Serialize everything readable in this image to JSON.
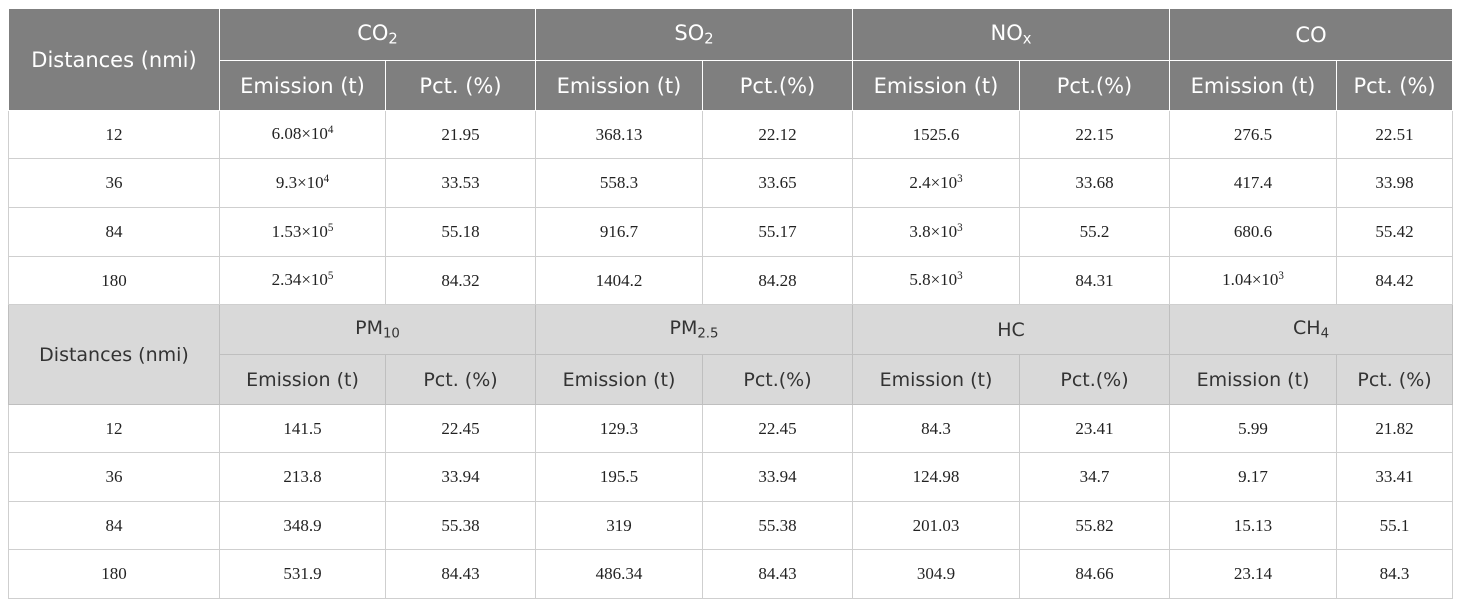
{
  "tables": [
    {
      "row_header": "Distances (nmi)",
      "groups": [
        {
          "name": {
            "base": "CO",
            "sub": "2"
          },
          "columns": [
            "Emission (t)",
            "Pct. (%)"
          ]
        },
        {
          "name": {
            "base": "SO",
            "sub": "2"
          },
          "columns": [
            "Emission (t)",
            "Pct.(%)"
          ]
        },
        {
          "name": {
            "base": "NO",
            "sub": "x"
          },
          "columns": [
            "Emission (t)",
            "Pct.(%)"
          ]
        },
        {
          "name": {
            "base": "CO"
          },
          "columns": [
            "Emission (t)",
            "Pct. (%)"
          ]
        }
      ],
      "rows": [
        [
          "12",
          {
            "base": "6.08×10",
            "sup": "4"
          },
          "21.95",
          "368.13",
          "22.12",
          "1525.6",
          "22.15",
          "276.5",
          "22.51"
        ],
        [
          "36",
          {
            "base": "9.3×10",
            "sup": "4"
          },
          "33.53",
          "558.3",
          "33.65",
          {
            "base": "2.4×10",
            "sup": "3"
          },
          "33.68",
          "417.4",
          "33.98"
        ],
        [
          "84",
          {
            "base": "1.53×10",
            "sup": "5"
          },
          "55.18",
          "916.7",
          "55.17",
          {
            "base": "3.8×10",
            "sup": "3"
          },
          "55.2",
          "680.6",
          "55.42"
        ],
        [
          "180",
          {
            "base": "2.34×10",
            "sup": "5"
          },
          "84.32",
          "1404.2",
          "84.28",
          {
            "base": "5.8×10",
            "sup": "3"
          },
          "84.31",
          {
            "base": "1.04×10",
            "sup": "3"
          },
          "84.42"
        ]
      ]
    },
    {
      "row_header": "Distances (nmi)",
      "groups": [
        {
          "name": {
            "base": "PM",
            "sub": "10"
          },
          "columns": [
            "Emission (t)",
            "Pct. (%)"
          ]
        },
        {
          "name": {
            "base": "PM",
            "sub": "2.5"
          },
          "columns": [
            "Emission (t)",
            "Pct.(%)"
          ]
        },
        {
          "name": {
            "base": "HC"
          },
          "columns": [
            "Emission (t)",
            "Pct.(%)"
          ]
        },
        {
          "name": {
            "base": "CH",
            "sub": "4"
          },
          "columns": [
            "Emission (t)",
            "Pct. (%)"
          ]
        }
      ],
      "rows": [
        [
          "12",
          "141.5",
          "22.45",
          "129.3",
          "22.45",
          "84.3",
          "23.41",
          "5.99",
          "21.82"
        ],
        [
          "36",
          "213.8",
          "33.94",
          "195.5",
          "33.94",
          "124.98",
          "34.7",
          "9.17",
          "33.41"
        ],
        [
          "84",
          "348.9",
          "55.38",
          "319",
          "55.38",
          "201.03",
          "55.82",
          "15.13",
          "55.1"
        ],
        [
          "180",
          "531.9",
          "84.43",
          "486.34",
          "84.43",
          "304.9",
          "84.66",
          "23.14",
          "84.3"
        ]
      ]
    }
  ]
}
